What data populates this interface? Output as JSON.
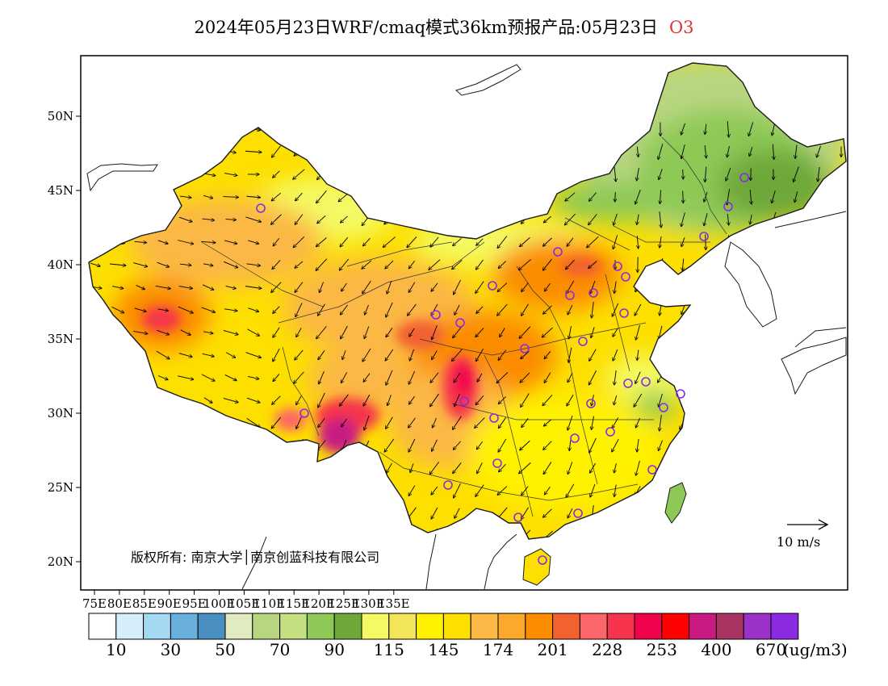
{
  "title": {
    "main": "2024年05月23日WRF/cmaq模式36km预报产品:05月23日",
    "pollutant": "O3"
  },
  "axes": {
    "x_ticks": [
      "75E",
      "80E",
      "85E",
      "90E",
      "95E",
      "100E",
      "105E",
      "110E",
      "115E",
      "120E",
      "125E",
      "130E",
      "135E"
    ],
    "y_ticks": [
      "50N",
      "45N",
      "40N",
      "35N",
      "30N",
      "25N",
      "20N"
    ],
    "lon_range": [
      73,
      135
    ],
    "lat_range": [
      18,
      54
    ]
  },
  "legend": {
    "colors": [
      "#ffffff",
      "#d6eefa",
      "#a5d8f3",
      "#6ab0dc",
      "#4a8fc2",
      "#e0ebbf",
      "#b8d67f",
      "#c3df80",
      "#8ec957",
      "#6ea83a",
      "#f4fa63",
      "#f2e55a",
      "#fff200",
      "#fddf00",
      "#fbb844",
      "#fca82a",
      "#fb8c00",
      "#f26130",
      "#fc6569",
      "#f6344c",
      "#f0034c",
      "#ff0000",
      "#c81a82",
      "#a93461",
      "#9a31c9",
      "#8a2be2"
    ],
    "labels": [
      "10",
      "30",
      "50",
      "70",
      "90",
      "115",
      "145",
      "174",
      "201",
      "228",
      "253",
      "400",
      "670"
    ],
    "unit": "(ug/m3)"
  },
  "copyright": "版权所有: 南京大学│南京创蓝科技有限公司",
  "wind_reference": {
    "label": "10  m/s",
    "icon": "arrow-right-icon"
  },
  "palette": {
    "frame": "#000000",
    "boundary": "#1a1a1a",
    "vector": "#000000",
    "station": "#8a2be2"
  }
}
